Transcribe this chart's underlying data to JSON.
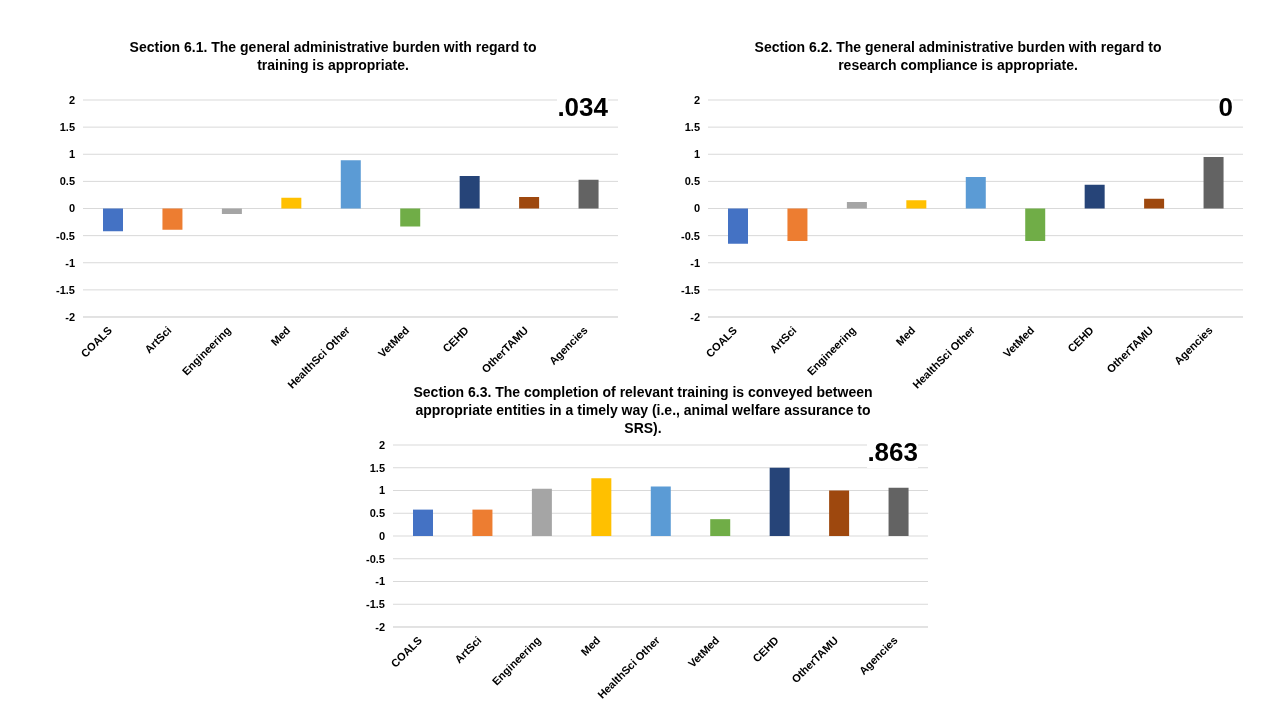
{
  "chart_data": [
    {
      "type": "bar",
      "title": "Section 6.1. The general administrative burden with regard to training is appropriate.",
      "categories": [
        "COALS",
        "ArtSci",
        "Engineering",
        "Med",
        "HealthSci Other",
        "VetMed",
        "CEHD",
        "OtherTAMU",
        "Agencies"
      ],
      "values": [
        -0.42,
        -0.39,
        -0.1,
        0.2,
        0.89,
        -0.33,
        0.6,
        0.21,
        0.53
      ],
      "colors": [
        "#4472c4",
        "#ed7d31",
        "#a5a5a5",
        "#ffc000",
        "#5b9bd5",
        "#70ad47",
        "#264478",
        "#9e480e",
        "#636363"
      ],
      "ylim": [
        -2,
        2
      ],
      "yticks": [
        -2,
        -1.5,
        -1,
        -0.5,
        0,
        0.5,
        1,
        1.5,
        2
      ],
      "grid": "y",
      "annotations": [
        ".034"
      ]
    },
    {
      "type": "bar",
      "title": "Section 6.2. The general administrative burden with regard to research compliance is appropriate.",
      "categories": [
        "COALS",
        "ArtSci",
        "Engineering",
        "Med",
        "HealthSci Other",
        "VetMed",
        "CEHD",
        "OtherTAMU",
        "Agencies"
      ],
      "values": [
        -0.65,
        -0.6,
        0.12,
        0.15,
        0.58,
        -0.6,
        0.44,
        0.18,
        0.95
      ],
      "colors": [
        "#4472c4",
        "#ed7d31",
        "#a5a5a5",
        "#ffc000",
        "#5b9bd5",
        "#70ad47",
        "#264478",
        "#9e480e",
        "#636363"
      ],
      "ylim": [
        -2,
        2
      ],
      "yticks": [
        -2,
        -1.5,
        -1,
        -0.5,
        0,
        0.5,
        1,
        1.5,
        2
      ],
      "grid": "y",
      "annotations": [
        "0"
      ]
    },
    {
      "type": "bar",
      "title": "Section 6.3. The completion of relevant training is conveyed between appropriate entities in a timely way (i.e., animal welfare assurance to SRS).",
      "categories": [
        "COALS",
        "ArtSci",
        "Engineering",
        "Med",
        "HealthSci Other",
        "VetMed",
        "CEHD",
        "OtherTAMU",
        "Agencies"
      ],
      "values": [
        0.58,
        0.58,
        1.04,
        1.27,
        1.09,
        0.37,
        1.5,
        1.0,
        1.06
      ],
      "colors": [
        "#4472c4",
        "#ed7d31",
        "#a5a5a5",
        "#ffc000",
        "#5b9bd5",
        "#70ad47",
        "#264478",
        "#9e480e",
        "#636363"
      ],
      "ylim": [
        -2,
        2
      ],
      "yticks": [
        -2,
        -1.5,
        -1,
        -0.5,
        0,
        0.5,
        1,
        1.5,
        2
      ],
      "grid": "y",
      "annotations": [
        ".863"
      ]
    }
  ]
}
